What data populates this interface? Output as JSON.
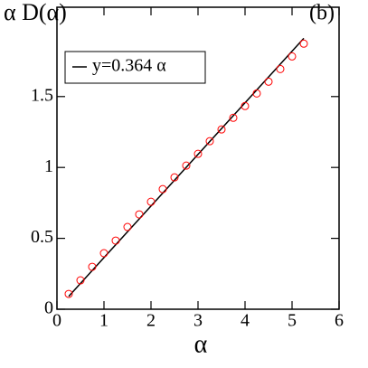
{
  "chart_data": {
    "type": "scatter",
    "ylabel": "α D(α)",
    "xlabel": "α",
    "annotation": "(b)",
    "xlim": [
      0,
      6
    ],
    "ylim": [
      0,
      2.13
    ],
    "xticks": [
      0,
      1,
      2,
      3,
      4,
      5,
      6
    ],
    "yticks": [
      0,
      0.5,
      1,
      1.5
    ],
    "legend": "upper left",
    "series": [
      {
        "name": "y=0.364 α",
        "kind": "line",
        "color": "#000000",
        "x": [
          0.25,
          5.25
        ],
        "values": [
          0.091,
          1.911
        ]
      },
      {
        "kind": "markers",
        "color": "#ff0000",
        "x": [
          0.25,
          0.5,
          0.75,
          1,
          1.25,
          1.5,
          1.75,
          2,
          2.25,
          2.5,
          2.75,
          3,
          3.25,
          3.5,
          3.75,
          4,
          4.25,
          4.5,
          4.75,
          5,
          5.25
        ],
        "values": [
          0.108,
          0.204,
          0.299,
          0.395,
          0.484,
          0.58,
          0.669,
          0.758,
          0.847,
          0.93,
          1.013,
          1.096,
          1.185,
          1.268,
          1.35,
          1.433,
          1.522,
          1.605,
          1.694,
          1.783,
          1.873
        ]
      }
    ]
  }
}
